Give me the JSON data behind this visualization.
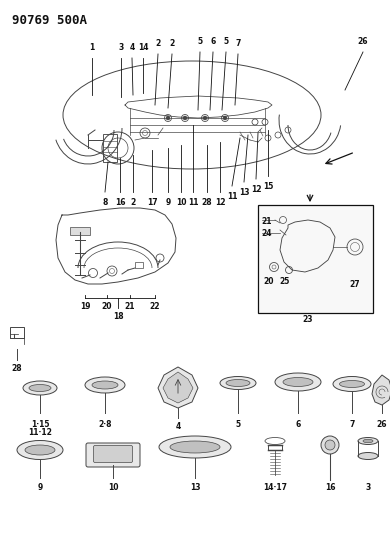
{
  "title": "90769 500A",
  "bg_color": "#ffffff",
  "lc": "#444444",
  "fig_width": 3.9,
  "fig_height": 5.33,
  "dpi": 100
}
